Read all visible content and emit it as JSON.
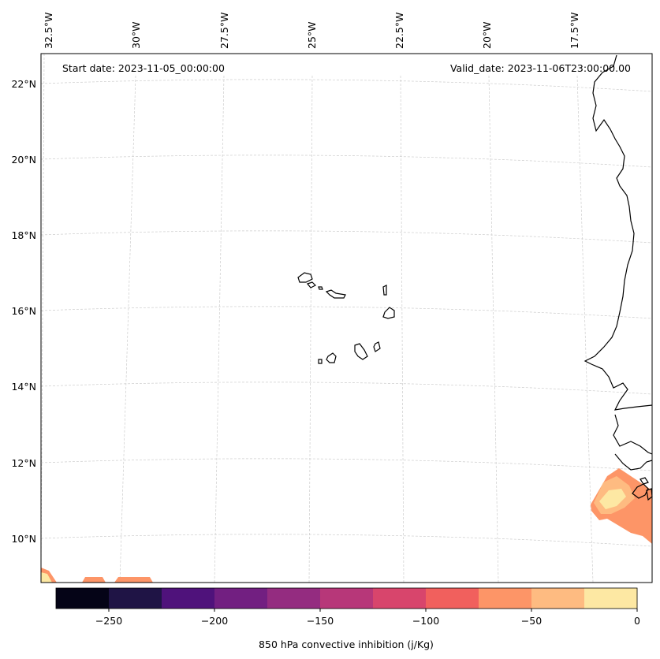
{
  "map": {
    "start_date": "Start date: 2023-11-05_00:00:00",
    "valid_date": "Valid_date: 2023-11-06T23:00:00.00",
    "lon_labels": [
      "32.5°W",
      "30°W",
      "27.5°W",
      "25°W",
      "22.5°W",
      "20°W",
      "17.5°W"
    ],
    "lat_labels": [
      "22°N",
      "20°N",
      "18°N",
      "16°N",
      "14°N",
      "12°N",
      "10°N"
    ],
    "colors": {
      "coastline": "#000000",
      "gridline": "#cccccc",
      "frame": "#000000"
    }
  },
  "colorbar": {
    "label": "850 hPa convective inhibition (j/Kg)",
    "min": -275,
    "max": 0,
    "ticks": [
      -250,
      -200,
      -150,
      -100,
      -50,
      0
    ],
    "tick_labels": [
      "−250",
      "−200",
      "−150",
      "−100",
      "−50",
      "0"
    ],
    "levels": [
      -275,
      -250,
      -225,
      -200,
      -175,
      -150,
      -125,
      -100,
      -75,
      -50,
      -25,
      0
    ],
    "colors": [
      "#050417",
      "#1f1445",
      "#4f127b",
      "#721f81",
      "#942c80",
      "#b73779",
      "#d8456c",
      "#f1605d",
      "#fd9567",
      "#febb81",
      "#fde8a3"
    ]
  }
}
